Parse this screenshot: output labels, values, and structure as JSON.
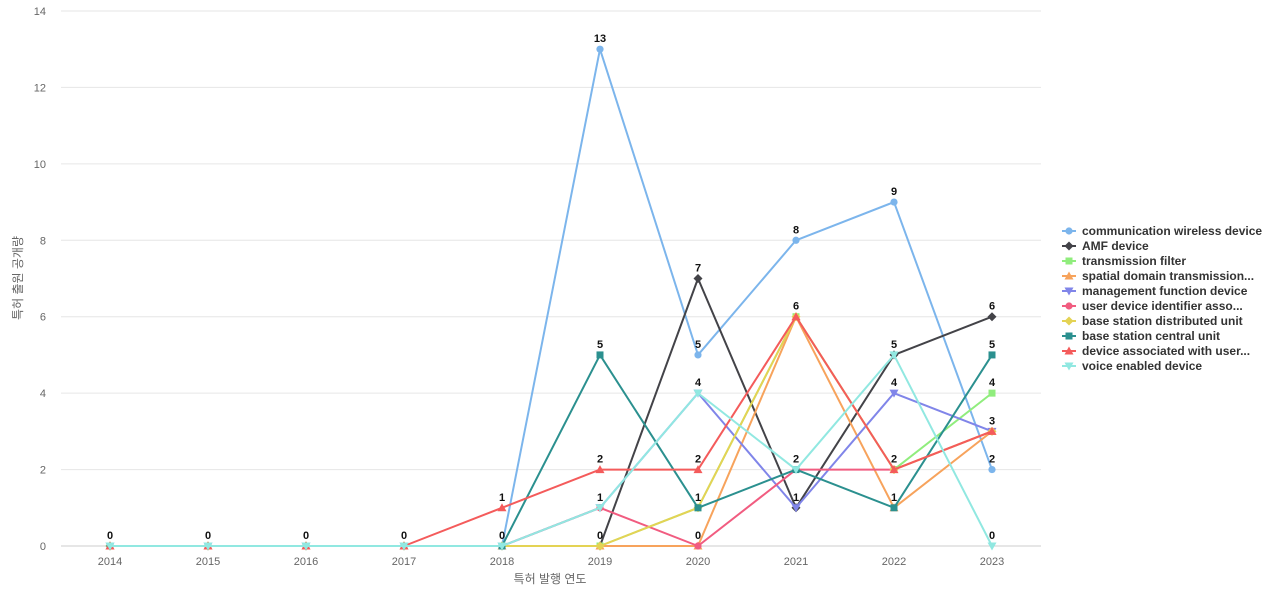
{
  "chart_data": {
    "type": "line",
    "title": "",
    "xlabel": "특허 발행 연도",
    "ylabel": "특허 출원 공개량",
    "x": [
      "2014",
      "2015",
      "2016",
      "2017",
      "2018",
      "2019",
      "2020",
      "2021",
      "2022",
      "2023"
    ],
    "ylim": [
      0,
      14
    ],
    "yticks": [
      0,
      2,
      4,
      6,
      8,
      10,
      12,
      14
    ],
    "grid": true,
    "legend_position": "right",
    "series": [
      {
        "name": "communication wireless device",
        "color": "#7cb5ec",
        "marker": "circle",
        "values": [
          0,
          0,
          0,
          0,
          0,
          13,
          5,
          8,
          9,
          2
        ],
        "labels": [
          "0",
          "0",
          "0",
          "0",
          "0",
          "13",
          "5",
          "8",
          "9",
          "2"
        ]
      },
      {
        "name": "AMF device",
        "color": "#434348",
        "marker": "diamond",
        "values": [
          0,
          0,
          0,
          0,
          0,
          0,
          7,
          1,
          5,
          6
        ],
        "labels": [
          null,
          null,
          null,
          null,
          null,
          null,
          "7",
          null,
          null,
          "6"
        ]
      },
      {
        "name": "transmission filter",
        "color": "#90ed7d",
        "marker": "square",
        "values": [
          0,
          0,
          0,
          0,
          0,
          0,
          1,
          6,
          2,
          4
        ],
        "labels": [
          null,
          null,
          null,
          null,
          null,
          null,
          null,
          null,
          null,
          "4"
        ]
      },
      {
        "name": "spatial domain transmission...",
        "color": "#f7a35c",
        "marker": "triangle",
        "values": [
          0,
          0,
          0,
          0,
          0,
          0,
          0,
          6,
          1,
          3
        ],
        "labels": [
          null,
          null,
          null,
          null,
          null,
          null,
          null,
          null,
          null,
          null
        ]
      },
      {
        "name": "management function device",
        "color": "#8085e9",
        "marker": "triangle-down",
        "values": [
          0,
          0,
          0,
          0,
          0,
          1,
          4,
          1,
          4,
          3
        ],
        "labels": [
          null,
          null,
          null,
          null,
          null,
          null,
          null,
          null,
          "4",
          null
        ]
      },
      {
        "name": "user device identifier asso...",
        "color": "#f15c80",
        "marker": "circle",
        "values": [
          0,
          0,
          0,
          0,
          0,
          1,
          0,
          2,
          2,
          3
        ],
        "labels": [
          null,
          null,
          null,
          null,
          null,
          null,
          "0",
          null,
          null,
          null
        ]
      },
      {
        "name": "base station distributed unit",
        "color": "#e4d354",
        "marker": "diamond",
        "values": [
          0,
          0,
          0,
          0,
          0,
          0,
          1,
          6,
          2,
          3
        ],
        "labels": [
          null,
          null,
          null,
          null,
          null,
          null,
          null,
          null,
          null,
          null
        ]
      },
      {
        "name": "base station central unit",
        "color": "#2b908f",
        "marker": "square",
        "values": [
          0,
          0,
          0,
          0,
          0,
          5,
          1,
          2,
          1,
          5
        ],
        "labels": [
          null,
          null,
          null,
          null,
          null,
          "5",
          "1",
          null,
          "1",
          "5"
        ]
      },
      {
        "name": "device associated with user...",
        "color": "#f45b5b",
        "marker": "triangle",
        "values": [
          0,
          0,
          0,
          0,
          1,
          2,
          2,
          6,
          2,
          3
        ],
        "labels": [
          null,
          null,
          null,
          null,
          "1",
          "2",
          "2",
          "6",
          "2",
          "3"
        ]
      },
      {
        "name": "voice enabled device",
        "color": "#91e8e1",
        "marker": "triangle-down",
        "values": [
          0,
          0,
          0,
          0,
          0,
          1,
          4,
          2,
          5,
          0
        ],
        "labels": [
          null,
          null,
          null,
          null,
          null,
          "1",
          "4",
          "2",
          "5",
          "0"
        ]
      }
    ],
    "extra_labels": [
      {
        "x": "2019",
        "y": 0,
        "text": "0"
      },
      {
        "x": "2021",
        "y": 1,
        "text": "1"
      }
    ]
  }
}
